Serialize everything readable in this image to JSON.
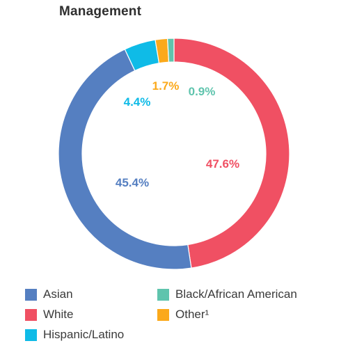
{
  "chart_data": {
    "type": "pie",
    "variant": "donut",
    "title": "Management",
    "start_angle_deg": 0,
    "direction": "clockwise",
    "slices": [
      {
        "name": "White",
        "value": 47.6,
        "label": "47.6%",
        "color": "#f05063"
      },
      {
        "name": "Asian",
        "value": 45.4,
        "label": "45.4%",
        "color": "#557fc1"
      },
      {
        "name": "Hispanic/Latino",
        "value": 4.4,
        "label": "4.4%",
        "color": "#0fbbe7"
      },
      {
        "name": "Other¹",
        "value": 1.7,
        "label": "1.7%",
        "color": "#fba91b"
      },
      {
        "name": "Black/African American",
        "value": 0.9,
        "label": "0.9%",
        "color": "#5fc4ad"
      }
    ],
    "legend": {
      "placement": "bottom",
      "items": [
        {
          "name": "Asian",
          "color": "#557fc1"
        },
        {
          "name": "Black/African American",
          "color": "#5fc4ad"
        },
        {
          "name": "White",
          "color": "#f05063"
        },
        {
          "name": "Other¹",
          "color": "#fba91b"
        },
        {
          "name": "Hispanic/Latino",
          "color": "#0fbbe7"
        }
      ]
    }
  }
}
